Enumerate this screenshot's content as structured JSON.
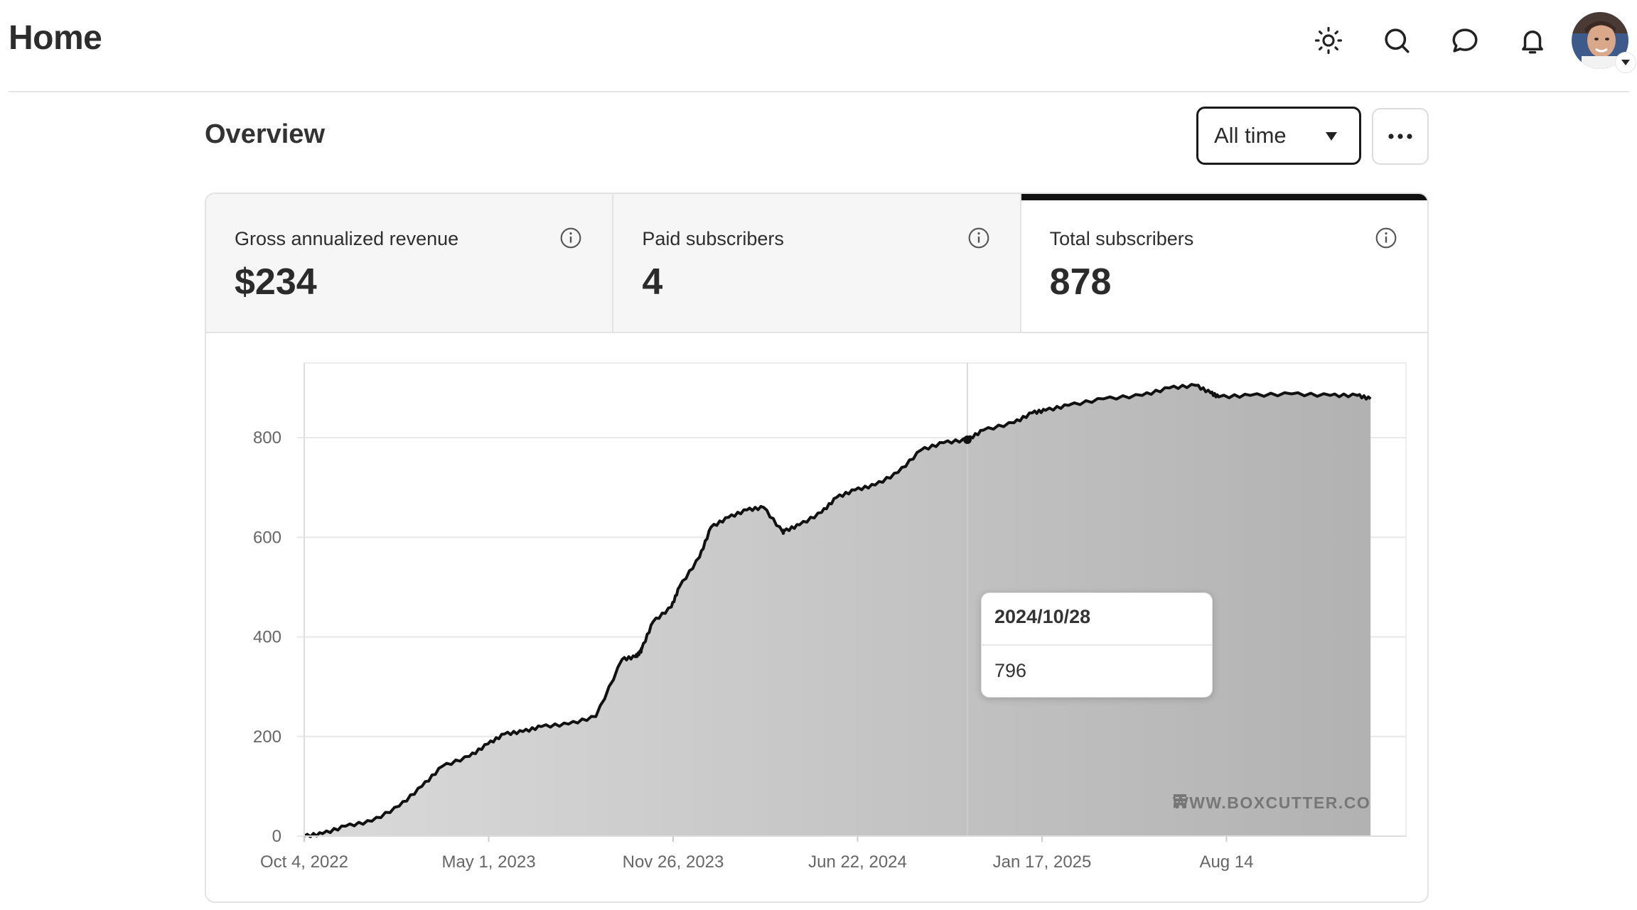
{
  "header": {
    "title": "Home",
    "icons": [
      "sun-icon",
      "search-icon",
      "chat-bubble-icon",
      "bell-icon"
    ]
  },
  "overview": {
    "title": "Overview",
    "range_select": {
      "value": "All time"
    }
  },
  "stats": [
    {
      "label": "Gross annualized revenue",
      "value": "$234",
      "active": false
    },
    {
      "label": "Paid subscribers",
      "value": "4",
      "active": false
    },
    {
      "label": "Total subscribers",
      "value": "878",
      "active": true
    }
  ],
  "tooltip": {
    "date": "2024/10/28",
    "value": "796"
  },
  "watermark": "WWW.BOXCUTTER.CO",
  "colors": {
    "line": "#111111",
    "area_light": "#d9d9d9",
    "area_dark": "#b3b3b3",
    "active_tab": "#111111"
  },
  "chart_data": {
    "type": "area",
    "title": "",
    "xlabel": "",
    "ylabel": "",
    "ylim": [
      0,
      950
    ],
    "yticks": [
      0,
      200,
      400,
      600,
      800
    ],
    "xticks": [
      "Oct 4, 2022",
      "May 1, 2023",
      "Nov 26, 2023",
      "Jun 22, 2024",
      "Jan 17, 2025",
      "Aug 14"
    ],
    "grid": true,
    "x_start": "2022-10-04",
    "series": [
      {
        "x": [
          "2022-10-04",
          "2022-10-25",
          "2022-11-20",
          "2022-12-20",
          "2023-01-20",
          "2023-02-15",
          "2023-03-10",
          "2023-04-10",
          "2023-05-01",
          "2023-05-20",
          "2023-06-10",
          "2023-07-01",
          "2023-08-01",
          "2023-09-01",
          "2023-10-01",
          "2023-10-16",
          "2023-10-22",
          "2023-10-23",
          "2023-11-05",
          "2023-11-26",
          "2023-12-05",
          "2023-12-28",
          "2024-01-10",
          "2024-01-30",
          "2024-02-20",
          "2024-03-10",
          "2024-04-01",
          "2024-04-02",
          "2024-04-20",
          "2024-05-15",
          "2024-06-01",
          "2024-06-22",
          "2024-07-15",
          "2024-08-10",
          "2024-09-05",
          "2024-10-01",
          "2024-10-28",
          "2024-11-15",
          "2024-12-20",
          "2025-01-10",
          "2025-01-25",
          "2025-02-20",
          "2025-04-01",
          "2025-05-15",
          "2025-06-15",
          "2025-07-15",
          "2025-08-01",
          "2025-08-10",
          "2025-09-15",
          "2025-11-01",
          "2025-12-15",
          "2026-01-15",
          "2026-01-30"
        ],
        "values": [
          0,
          5,
          20,
          30,
          60,
          100,
          140,
          160,
          185,
          205,
          210,
          220,
          225,
          240,
          355,
          360,
          370,
          375,
          430,
          460,
          500,
          560,
          620,
          640,
          655,
          660,
          610,
          612,
          625,
          650,
          680,
          695,
          705,
          730,
          775,
          790,
          796,
          815,
          830,
          850,
          855,
          865,
          878,
          885,
          900,
          905,
          890,
          882,
          885,
          888,
          885,
          885,
          878
        ]
      }
    ]
  }
}
